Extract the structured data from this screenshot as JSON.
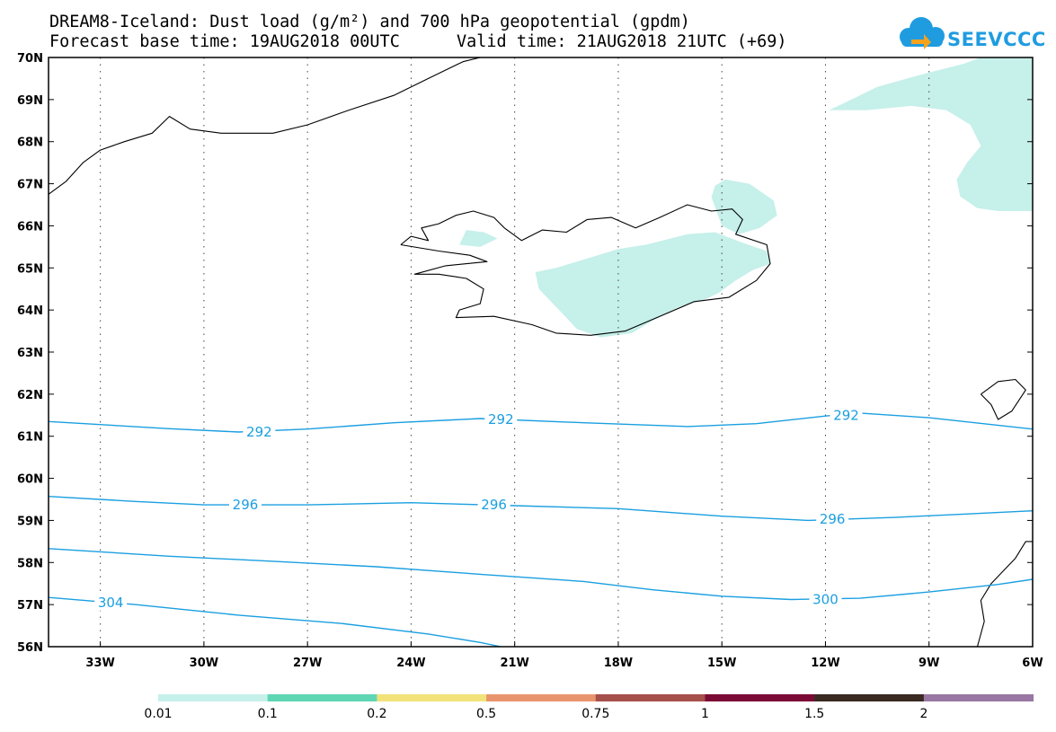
{
  "title": {
    "line1": "DREAM8-Iceland: Dust load (g/m²) and 700 hPa geopotential (gpdm)",
    "line2_base": "Forecast base time: 19AUG2018 00UTC",
    "line2_valid": "Valid time: 21AUG2018 21UTC (+69)"
  },
  "logo": {
    "text": "SEEVCCC",
    "icon": "cloud-icon"
  },
  "map": {
    "lon_range": [
      -34.5,
      -6
    ],
    "lat_range": [
      56,
      70
    ],
    "lon_ticks": [
      -33,
      -30,
      -27,
      -24,
      -21,
      -18,
      -15,
      -12,
      -9,
      -6
    ],
    "lon_tick_labels": [
      "33W",
      "30W",
      "27W",
      "24W",
      "21W",
      "18W",
      "15W",
      "12W",
      "9W",
      "6W"
    ],
    "lat_ticks": [
      70,
      69,
      68,
      67,
      66,
      65,
      64,
      63,
      62,
      61,
      60,
      59,
      58,
      57,
      56
    ],
    "lat_tick_labels": [
      "70N",
      "69N",
      "68N",
      "67N",
      "66N",
      "65N",
      "64N",
      "63N",
      "62N",
      "61N",
      "60N",
      "59N",
      "58N",
      "57N",
      "56N"
    ],
    "grid": "dotted",
    "contour_color": "#1a9fe0",
    "dust_fill_color": "#c6f0ea",
    "contours": [
      {
        "label": "292",
        "label_positions": [
          [
            -28.4,
            61.1
          ],
          [
            -21.4,
            61.4
          ],
          [
            -11.4,
            61.5
          ]
        ],
        "points": [
          [
            -34.5,
            61.35
          ],
          [
            -31,
            61.18
          ],
          [
            -29,
            61.1
          ],
          [
            -27,
            61.17
          ],
          [
            -24.5,
            61.32
          ],
          [
            -22,
            61.42
          ],
          [
            -19,
            61.32
          ],
          [
            -16,
            61.23
          ],
          [
            -14,
            61.3
          ],
          [
            -12,
            61.48
          ],
          [
            -11,
            61.55
          ],
          [
            -9,
            61.44
          ],
          [
            -6,
            61.17
          ]
        ]
      },
      {
        "label": "296",
        "label_positions": [
          [
            -28.8,
            59.37
          ],
          [
            -21.6,
            59.37
          ],
          [
            -11.8,
            59.03
          ]
        ],
        "points": [
          [
            -34.5,
            59.57
          ],
          [
            -32,
            59.45
          ],
          [
            -30,
            59.37
          ],
          [
            -27,
            59.37
          ],
          [
            -24,
            59.42
          ],
          [
            -21,
            59.35
          ],
          [
            -18,
            59.28
          ],
          [
            -15,
            59.1
          ],
          [
            -12.5,
            59.0
          ],
          [
            -10,
            59.07
          ],
          [
            -8,
            59.15
          ],
          [
            -6,
            59.23
          ]
        ]
      },
      {
        "label": "300",
        "label_positions": [
          [
            -12.0,
            57.12
          ]
        ],
        "points": [
          [
            -34.5,
            58.33
          ],
          [
            -31,
            58.15
          ],
          [
            -28,
            58.03
          ],
          [
            -25,
            57.9
          ],
          [
            -22,
            57.72
          ],
          [
            -19,
            57.55
          ],
          [
            -17,
            57.35
          ],
          [
            -15,
            57.2
          ],
          [
            -13,
            57.12
          ],
          [
            -11,
            57.15
          ],
          [
            -9,
            57.3
          ],
          [
            -7,
            57.48
          ],
          [
            -6,
            57.6
          ]
        ]
      },
      {
        "label": "304",
        "label_positions": [
          [
            -32.7,
            57.05
          ]
        ],
        "points": [
          [
            -34.5,
            57.17
          ],
          [
            -32,
            57.0
          ],
          [
            -29,
            56.75
          ],
          [
            -26,
            56.55
          ],
          [
            -23.5,
            56.3
          ],
          [
            -22,
            56.1
          ],
          [
            -21.4,
            56.0
          ]
        ]
      }
    ],
    "dust_areas": [
      {
        "name": "dust-plume-northeast",
        "points": [
          [
            -11.9,
            68.75
          ],
          [
            -11.5,
            68.9
          ],
          [
            -10.5,
            69.3
          ],
          [
            -9.2,
            69.6
          ],
          [
            -8,
            69.85
          ],
          [
            -7.5,
            70
          ],
          [
            -6,
            70
          ],
          [
            -6,
            66.35
          ],
          [
            -7,
            66.35
          ],
          [
            -7.6,
            66.42
          ],
          [
            -8.1,
            66.7
          ],
          [
            -8.2,
            67.1
          ],
          [
            -7.9,
            67.5
          ],
          [
            -7.5,
            67.9
          ],
          [
            -7.8,
            68.4
          ],
          [
            -8.5,
            68.75
          ],
          [
            -9.5,
            68.85
          ],
          [
            -10.8,
            68.75
          ],
          [
            -11.9,
            68.75
          ]
        ]
      },
      {
        "name": "dust-area-northeast-iceland",
        "points": [
          [
            -15.3,
            66.68
          ],
          [
            -15.2,
            66.95
          ],
          [
            -14.9,
            67.1
          ],
          [
            -14.2,
            67.0
          ],
          [
            -13.5,
            66.6
          ],
          [
            -13.4,
            66.25
          ],
          [
            -13.9,
            65.95
          ],
          [
            -14.5,
            65.8
          ],
          [
            -15.0,
            66.0
          ],
          [
            -15.3,
            66.68
          ]
        ]
      },
      {
        "name": "dust-area-northwest",
        "points": [
          [
            -22.4,
            65.9
          ],
          [
            -21.9,
            65.85
          ],
          [
            -21.5,
            65.7
          ],
          [
            -22.0,
            65.5
          ],
          [
            -22.6,
            65.55
          ],
          [
            -22.4,
            65.9
          ]
        ]
      },
      {
        "name": "dust-area-central-iceland",
        "points": [
          [
            -20.3,
            64.5
          ],
          [
            -20.4,
            64.9
          ],
          [
            -19.8,
            65.0
          ],
          [
            -18.8,
            65.25
          ],
          [
            -18.0,
            65.45
          ],
          [
            -17.2,
            65.55
          ],
          [
            -16.0,
            65.8
          ],
          [
            -15.2,
            65.85
          ],
          [
            -14.4,
            65.6
          ],
          [
            -13.7,
            65.4
          ],
          [
            -13.6,
            65.1
          ],
          [
            -14.1,
            64.95
          ],
          [
            -14.6,
            64.7
          ],
          [
            -15.1,
            64.4
          ],
          [
            -15.5,
            64.25
          ],
          [
            -16.3,
            64.05
          ],
          [
            -17.0,
            63.75
          ],
          [
            -17.6,
            63.45
          ],
          [
            -18.5,
            63.35
          ],
          [
            -19.2,
            63.55
          ],
          [
            -19.6,
            63.9
          ],
          [
            -20.3,
            64.5
          ]
        ]
      }
    ],
    "coastlines": [
      {
        "name": "coastline-iceland",
        "points": [
          [
            -24.3,
            65.55
          ],
          [
            -24.0,
            65.75
          ],
          [
            -23.5,
            65.65
          ],
          [
            -23.7,
            65.95
          ],
          [
            -23.2,
            66.05
          ],
          [
            -22.7,
            66.25
          ],
          [
            -22.2,
            66.35
          ],
          [
            -21.6,
            66.2
          ],
          [
            -21.3,
            65.95
          ],
          [
            -20.8,
            65.65
          ],
          [
            -20.2,
            65.9
          ],
          [
            -19.5,
            65.85
          ],
          [
            -18.9,
            66.15
          ],
          [
            -18.2,
            66.2
          ],
          [
            -17.5,
            65.95
          ],
          [
            -16.8,
            66.2
          ],
          [
            -16.0,
            66.5
          ],
          [
            -15.3,
            66.35
          ],
          [
            -14.7,
            66.4
          ],
          [
            -14.4,
            66.15
          ],
          [
            -14.6,
            65.8
          ],
          [
            -13.7,
            65.55
          ],
          [
            -13.6,
            65.1
          ],
          [
            -14.0,
            64.7
          ],
          [
            -14.8,
            64.3
          ],
          [
            -15.8,
            64.2
          ],
          [
            -16.8,
            63.85
          ],
          [
            -17.8,
            63.5
          ],
          [
            -18.8,
            63.4
          ],
          [
            -19.8,
            63.45
          ],
          [
            -20.5,
            63.65
          ],
          [
            -21.6,
            63.85
          ],
          [
            -22.7,
            63.82
          ],
          [
            -22.6,
            64.0
          ],
          [
            -22.0,
            64.15
          ],
          [
            -21.9,
            64.5
          ],
          [
            -22.4,
            64.75
          ],
          [
            -23.2,
            64.85
          ],
          [
            -23.9,
            64.85
          ],
          [
            -23.0,
            65.05
          ],
          [
            -21.8,
            65.15
          ],
          [
            -22.3,
            65.3
          ],
          [
            -23.2,
            65.4
          ],
          [
            -24.3,
            65.55
          ]
        ]
      },
      {
        "name": "coastline-greenland",
        "points": [
          [
            -34.5,
            66.75
          ],
          [
            -34.0,
            67.05
          ],
          [
            -33.5,
            67.5
          ],
          [
            -33.0,
            67.8
          ],
          [
            -32.3,
            68.0
          ],
          [
            -31.5,
            68.2
          ],
          [
            -31.0,
            68.6
          ],
          [
            -30.4,
            68.3
          ],
          [
            -29.5,
            68.2
          ],
          [
            -28.0,
            68.2
          ],
          [
            -27.0,
            68.4
          ],
          [
            -25.8,
            68.75
          ],
          [
            -24.5,
            69.1
          ],
          [
            -23.5,
            69.5
          ],
          [
            -22.5,
            69.9
          ],
          [
            -22.0,
            70.0
          ]
        ]
      },
      {
        "name": "coastline-faroe-islands",
        "points": [
          [
            -7.5,
            62.0
          ],
          [
            -7.0,
            62.3
          ],
          [
            -6.5,
            62.35
          ],
          [
            -6.2,
            62.1
          ],
          [
            -6.6,
            61.6
          ],
          [
            -7.0,
            61.4
          ],
          [
            -7.2,
            61.75
          ],
          [
            -7.5,
            62.0
          ]
        ]
      },
      {
        "name": "coastline-scotland",
        "points": [
          [
            -7.6,
            56.0
          ],
          [
            -7.4,
            56.6
          ],
          [
            -7.5,
            57.1
          ],
          [
            -7.2,
            57.5
          ],
          [
            -6.5,
            58.1
          ],
          [
            -6.2,
            58.5
          ],
          [
            -6.0,
            58.5
          ],
          [
            -6.0,
            56.0
          ],
          [
            -7.6,
            56.0
          ]
        ]
      }
    ]
  },
  "colorbar": {
    "colors": [
      "#c6f0ea",
      "#5ed6b4",
      "#f2e27a",
      "#e8956e",
      "#a6504c",
      "#7b0b36",
      "#3a2a22",
      "#9a77a3"
    ],
    "labels": [
      "0.01",
      "0.1",
      "0.2",
      "0.5",
      "0.75",
      "1",
      "1.5",
      "2"
    ]
  }
}
